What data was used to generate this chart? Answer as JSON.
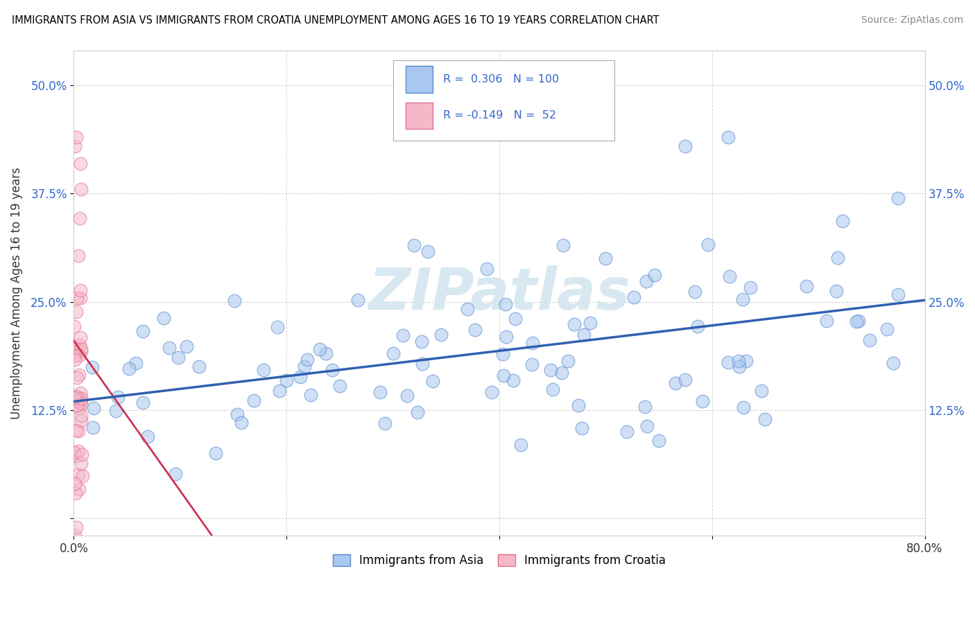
{
  "title": "IMMIGRANTS FROM ASIA VS IMMIGRANTS FROM CROATIA UNEMPLOYMENT AMONG AGES 16 TO 19 YEARS CORRELATION CHART",
  "source": "Source: ZipAtlas.com",
  "ylabel": "Unemployment Among Ages 16 to 19 years",
  "xlim": [
    0.0,
    0.8
  ],
  "ylim": [
    -0.02,
    0.54
  ],
  "xticks": [
    0.0,
    0.2,
    0.4,
    0.6,
    0.8
  ],
  "xtick_labels": [
    "0.0%",
    "",
    "",
    "",
    "80.0%"
  ],
  "yticks": [
    0.0,
    0.125,
    0.25,
    0.375,
    0.5
  ],
  "ytick_labels": [
    "",
    "12.5%",
    "25.0%",
    "37.5%",
    "50.0%"
  ],
  "R_asia": 0.306,
  "N_asia": 100,
  "R_croatia": -0.149,
  "N_croatia": 52,
  "color_asia": "#a8c8f0",
  "color_croatia": "#f5b8c8",
  "edge_color_asia": "#5588cc",
  "edge_color_croatia": "#e07090",
  "line_color_asia": "#3060b0",
  "line_color_croatia": "#cc3355",
  "watermark_text": "ZIPatlas",
  "watermark_color": "#d8e8f0",
  "asia_line_x0": 0.0,
  "asia_line_x1": 0.8,
  "asia_line_y0": 0.135,
  "asia_line_y1": 0.252,
  "croatia_line_x0": 0.0,
  "croatia_line_x1": 0.13,
  "croatia_line_y0": 0.205,
  "croatia_line_y1": -0.02,
  "legend_R_color": "#3366cc",
  "legend_N_color": "#cc0000"
}
